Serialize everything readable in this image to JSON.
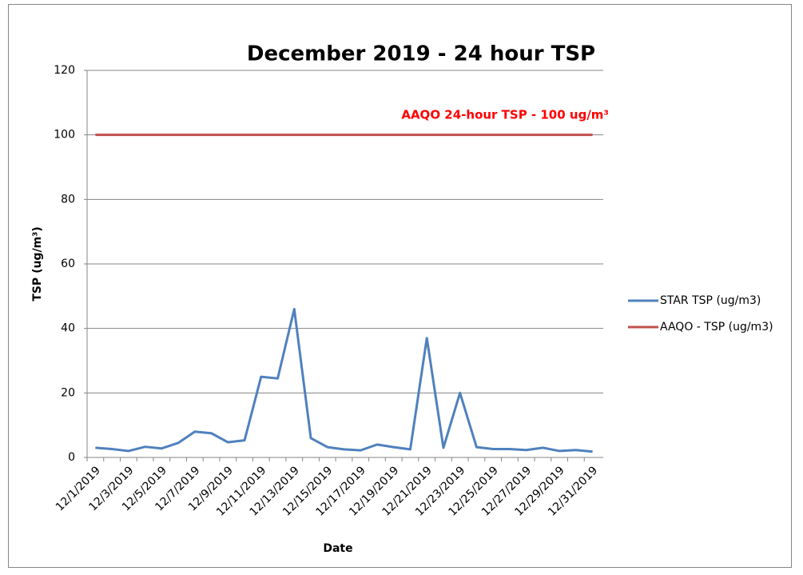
{
  "chart_data": {
    "type": "line",
    "title": "December 2019 - 24 hour TSP",
    "annotation": "AAQO 24-hour TSP - 100 ug/m³",
    "x_label": "Date",
    "y_label": "TSP (ug/m³)",
    "categories": [
      "12/1/2019",
      null,
      "12/3/2019",
      null,
      "12/5/2019",
      null,
      "12/7/2019",
      null,
      "12/9/2019",
      null,
      "12/11/2019",
      null,
      "12/13/2019",
      null,
      "12/15/2019",
      null,
      "12/17/2019",
      null,
      "12/19/2019",
      null,
      "12/21/2019",
      null,
      "12/23/2019",
      null,
      "12/25/2019",
      null,
      "12/27/2019",
      null,
      "12/29/2019",
      null,
      "12/31/2019"
    ],
    "series": [
      {
        "name": "STAR TSP (ug/m3)",
        "color": "#4f81bd",
        "values": [
          3.0,
          2.6,
          2.0,
          3.3,
          2.8,
          4.5,
          8.0,
          7.5,
          4.7,
          5.3,
          25.0,
          24.5,
          46.0,
          6.0,
          3.2,
          2.5,
          2.2,
          4.0,
          3.2,
          2.5,
          37.0,
          3.0,
          20.0,
          3.2,
          2.6,
          2.6,
          2.3,
          3.0,
          2.0,
          2.3,
          1.8
        ]
      },
      {
        "name": "AAQO - TSP (ug/m3)",
        "color": "#c0504d",
        "values": [
          100,
          100,
          100,
          100,
          100,
          100,
          100,
          100,
          100,
          100,
          100,
          100,
          100,
          100,
          100,
          100,
          100,
          100,
          100,
          100,
          100,
          100,
          100,
          100,
          100,
          100,
          100,
          100,
          100,
          100,
          100
        ]
      }
    ],
    "ylim": [
      0,
      120
    ],
    "yticks": [
      0,
      20,
      40,
      60,
      80,
      100,
      120
    ],
    "grid": true,
    "legend": "right"
  }
}
